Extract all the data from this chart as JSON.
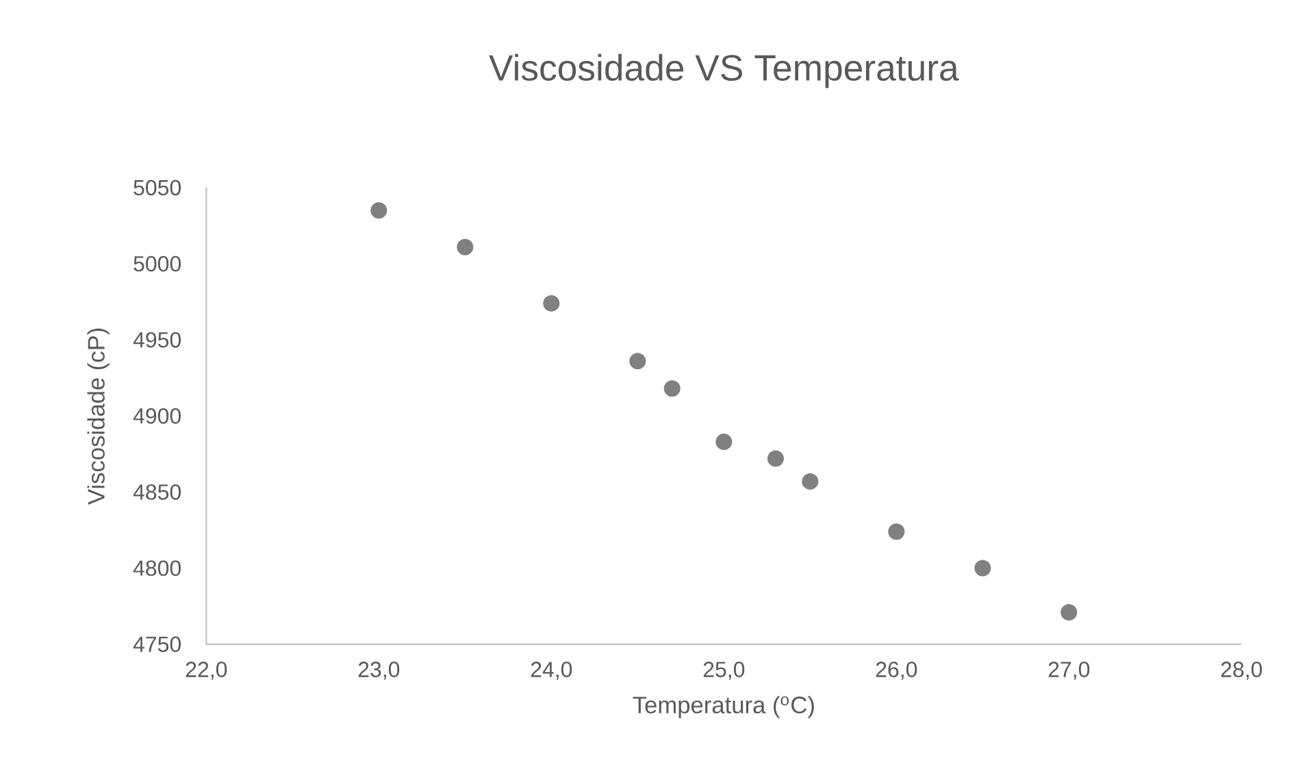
{
  "chart_data": {
    "type": "scatter",
    "title": "Viscosidade VS Temperatura",
    "xlabel": "Temperatura ($^{o}$C)",
    "ylabel": "Viscosidade (cP)",
    "x": [
      23.0,
      23.5,
      24.0,
      24.5,
      24.7,
      25.0,
      25.3,
      25.5,
      26.0,
      26.5,
      27.0
    ],
    "values": [
      5035,
      5011,
      4974,
      4936,
      4918,
      4883,
      4872,
      4857,
      4824,
      4800,
      4771
    ],
    "color": "#808080",
    "xlim": [
      22,
      28
    ],
    "xticks": [
      {
        "value": 22,
        "label": "22,0"
      },
      {
        "value": 23,
        "label": "23,0"
      },
      {
        "value": 24,
        "label": "24,0"
      },
      {
        "value": 25,
        "label": "25,0"
      },
      {
        "value": 26,
        "label": "26,0"
      },
      {
        "value": 27,
        "label": "27,0"
      },
      {
        "value": 28,
        "label": "28,0"
      }
    ],
    "ylim": [
      4750,
      5050
    ],
    "yticks": [
      4750,
      4800,
      4850,
      4900,
      4950,
      5000,
      5050
    ],
    "grid": false
  }
}
